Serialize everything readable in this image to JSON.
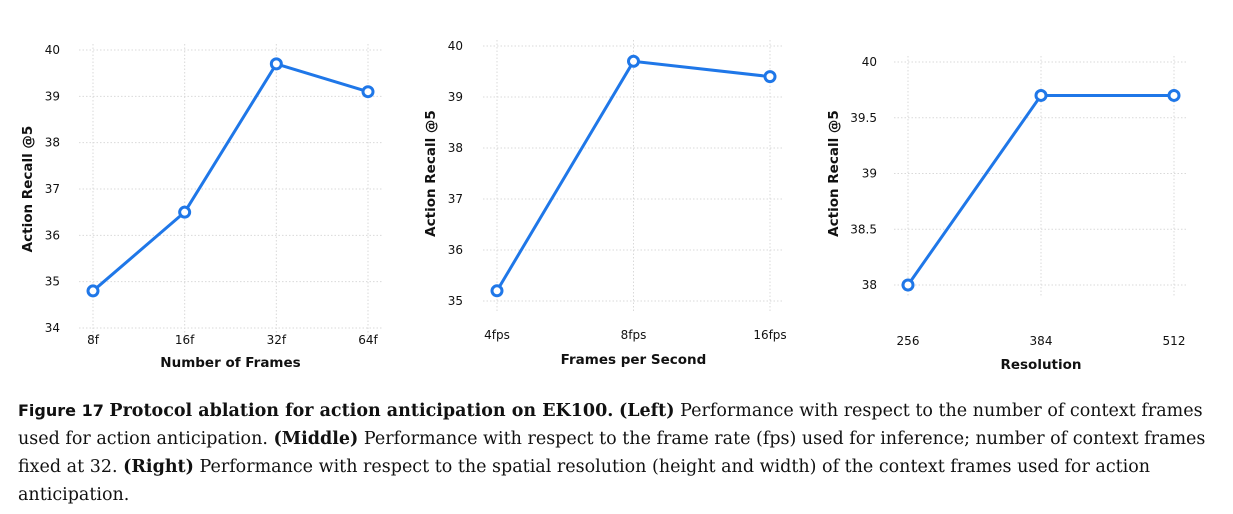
{
  "colors": {
    "series": "#1f77e8",
    "grid": "#d9d9d9"
  },
  "chart_data": [
    {
      "type": "line",
      "categories": [
        "8f",
        "16f",
        "32f",
        "64f"
      ],
      "values": [
        34.8,
        36.5,
        39.7,
        39.1
      ],
      "xlabel": "Number of Frames",
      "ylabel": "Action Recall @5",
      "ylim": [
        34,
        40
      ],
      "yticks": [
        "34",
        "35",
        "36",
        "37",
        "38",
        "39",
        "40"
      ],
      "grid": true
    },
    {
      "type": "line",
      "categories": [
        "4fps",
        "8fps",
        "16fps"
      ],
      "values": [
        35.2,
        39.7,
        39.4
      ],
      "xlabel": "Frames per Second",
      "ylabel": "Action Recall @5",
      "ylim": [
        35,
        40
      ],
      "yticks": [
        "35",
        "36",
        "37",
        "38",
        "39",
        "40"
      ],
      "grid": true
    },
    {
      "type": "line",
      "categories": [
        "256",
        "384",
        "512"
      ],
      "values": [
        38.0,
        39.7,
        39.7
      ],
      "xlabel": "Resolution",
      "ylabel": "Action Recall @5",
      "ylim": [
        38,
        40
      ],
      "yticks": [
        "38",
        "38.5",
        "39",
        "39.5",
        "40"
      ],
      "grid": true
    }
  ],
  "caption": {
    "label": "Figure 17",
    "title": "Protocol ablation for action anticipation on EK100.",
    "left_tag": "(Left)",
    "left_text": "Performance with respect to the number of context frames used for action anticipation.",
    "middle_tag": "(Middle)",
    "middle_text": "Performance with respect to the frame rate (fps) used for inference; number of context frames fixed at 32.",
    "right_tag": "(Right)",
    "right_text": "Performance with respect to the spatial resolution (height and width) of the context frames used for action anticipation."
  }
}
